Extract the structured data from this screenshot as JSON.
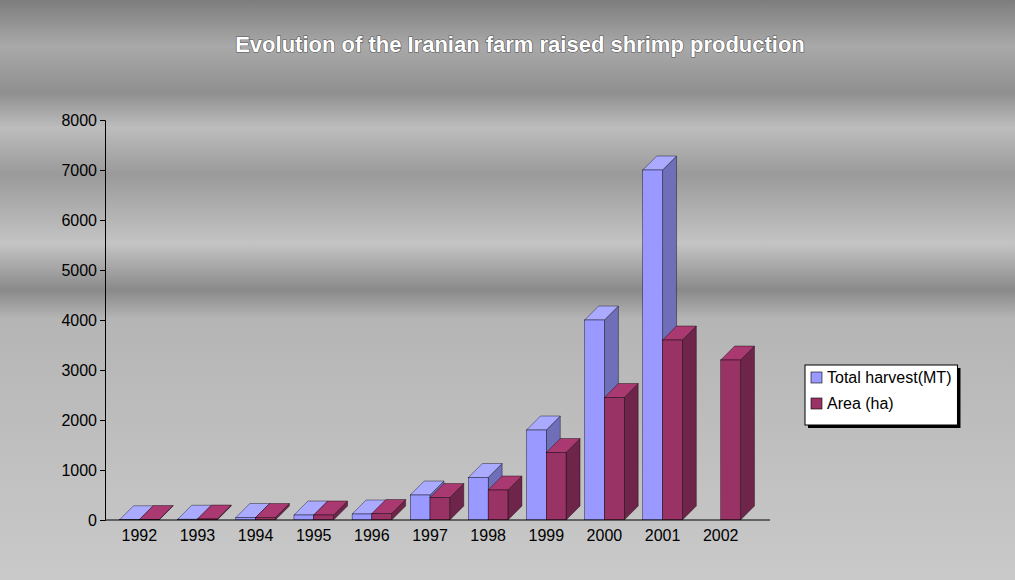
{
  "chart_data": {
    "type": "bar",
    "title": "Evolution of the Iranian farm raised shrimp production",
    "categories": [
      "1992",
      "1993",
      "1994",
      "1995",
      "1996",
      "1997",
      "1998",
      "1999",
      "2000",
      "2001",
      "2002"
    ],
    "series": [
      {
        "name": "Total harvest(MT)",
        "color": "#9999ff",
        "values": [
          5,
          15,
          50,
          100,
          120,
          500,
          850,
          1800,
          4000,
          7000,
          null
        ]
      },
      {
        "name": "Area (ha)",
        "color": "#993366",
        "values": [
          10,
          20,
          50,
          100,
          130,
          450,
          600,
          1350,
          2450,
          3600,
          3200
        ]
      }
    ],
    "ylim": [
      0,
      8000
    ],
    "yticks": [
      0,
      1000,
      2000,
      3000,
      4000,
      5000,
      6000,
      7000,
      8000
    ],
    "grid": false,
    "legend": "right"
  }
}
